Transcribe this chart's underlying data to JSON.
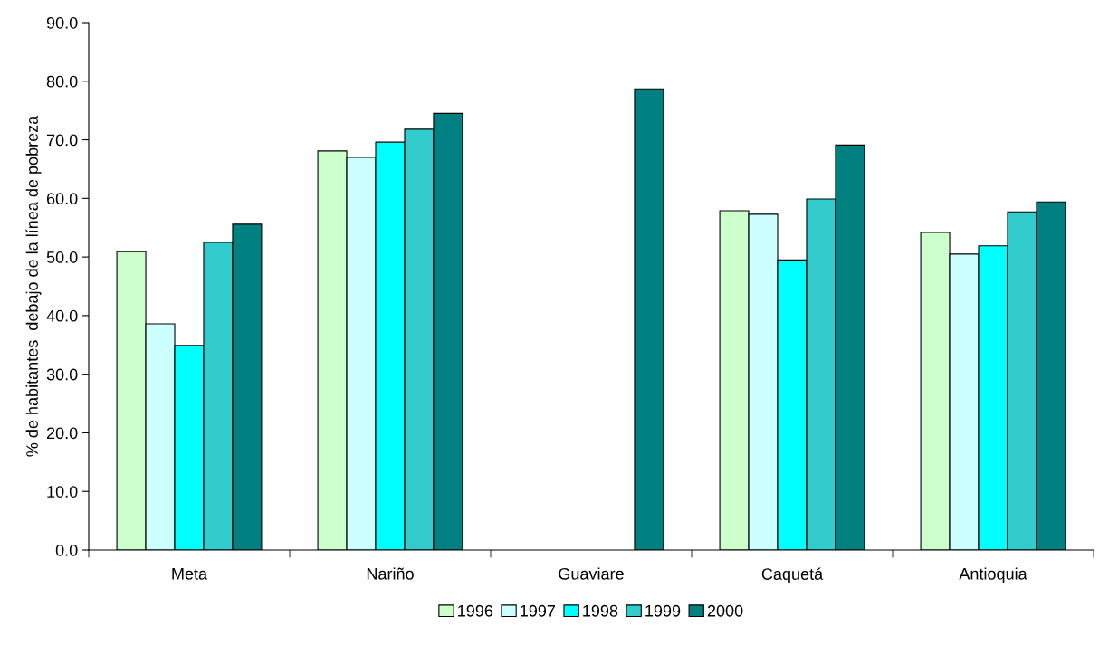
{
  "chart_data": {
    "type": "bar",
    "ylabel": "% de habitantes  debajo de la línea de pobreza",
    "categories": [
      "Meta",
      "Nariño",
      "Guaviare",
      "Caquetá",
      "Antioquia"
    ],
    "series": [
      {
        "name": "1996",
        "color": "#ccffcc",
        "values": [
          50.9,
          68.1,
          null,
          57.9,
          54.2
        ]
      },
      {
        "name": "1997",
        "color": "#ccffff",
        "values": [
          38.6,
          67.0,
          null,
          57.3,
          50.5
        ]
      },
      {
        "name": "1998",
        "color": "#00ffff",
        "values": [
          34.9,
          69.6,
          null,
          49.5,
          51.9
        ]
      },
      {
        "name": "1999",
        "color": "#33cccc",
        "values": [
          52.5,
          71.8,
          null,
          59.9,
          57.7
        ]
      },
      {
        "name": "2000",
        "color": "#008080",
        "values": [
          55.6,
          74.5,
          78.7,
          69.1,
          59.4
        ]
      }
    ],
    "ylim": [
      0,
      90
    ],
    "yticks": [
      {
        "value": 0,
        "label": "0.0"
      },
      {
        "value": 10,
        "label": "10.0"
      },
      {
        "value": 20,
        "label": "20.0"
      },
      {
        "value": 30,
        "label": "30.0"
      },
      {
        "value": 40,
        "label": "40.0"
      },
      {
        "value": 50,
        "label": "50.0"
      },
      {
        "value": 60,
        "label": "60.0"
      },
      {
        "value": 70,
        "label": "70.0"
      },
      {
        "value": 80,
        "label": "80.0"
      },
      {
        "value": 90,
        "label": "90.0"
      }
    ],
    "grid": false,
    "legend": "bottom"
  }
}
